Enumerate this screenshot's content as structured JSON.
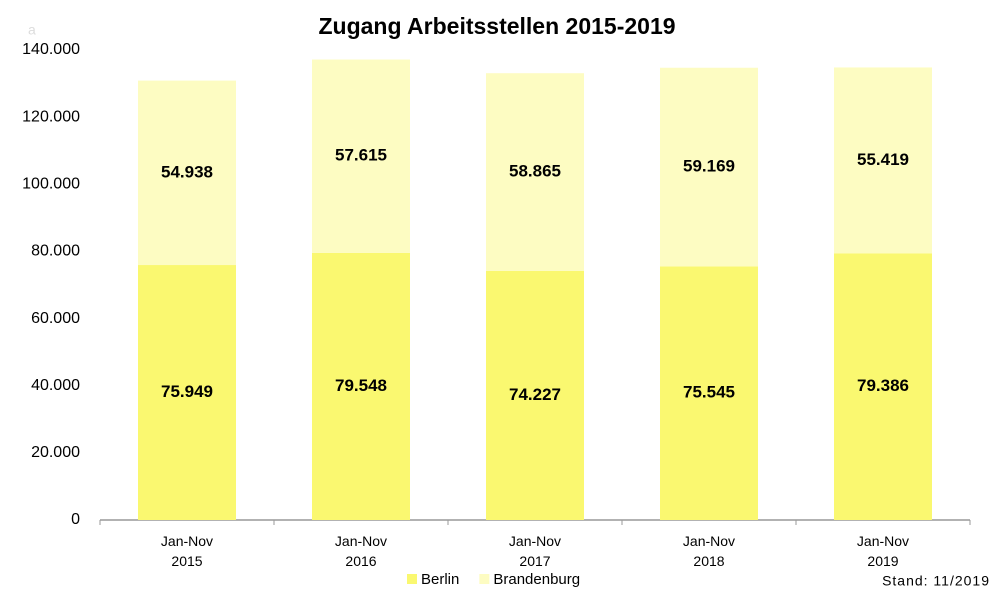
{
  "chart_data": {
    "type": "stacked_bar",
    "title": "Zugang Arbeitsstellen 2015-2019",
    "annotation": "a",
    "note": "Stand: 11/2019",
    "categories": [
      "Jan-Nov 2015",
      "Jan-Nov 2016",
      "Jan-Nov 2017",
      "Jan-Nov 2018",
      "Jan-Nov 2019"
    ],
    "series": [
      {
        "name": "Berlin",
        "color": "#faf870",
        "values": [
          75949,
          79548,
          74227,
          75545,
          79386
        ],
        "value_labels": [
          "75.949",
          "79.548",
          "74.227",
          "75.545",
          "79.386"
        ]
      },
      {
        "name": "Brandenburg",
        "color": "#fdfcc2",
        "values": [
          54938,
          57615,
          58865,
          59169,
          55419
        ],
        "value_labels": [
          "54.938",
          "57.615",
          "58.865",
          "59.169",
          "55.419"
        ]
      }
    ],
    "ylim": [
      0,
      140000
    ],
    "yticks": [
      0,
      {
        "value": 20000,
        "label": "20.000"
      },
      {
        "value": 40000,
        "label": "40.000"
      },
      {
        "value": 60000,
        "label": "60.000"
      },
      {
        "value": 80000,
        "label": "80.000"
      },
      {
        "value": 100000,
        "label": "100.000"
      },
      {
        "value": 120000,
        "label": "120.000"
      },
      {
        "value": 140000,
        "label": "140.000"
      }
    ],
    "grid": false,
    "legend": "bottom"
  }
}
